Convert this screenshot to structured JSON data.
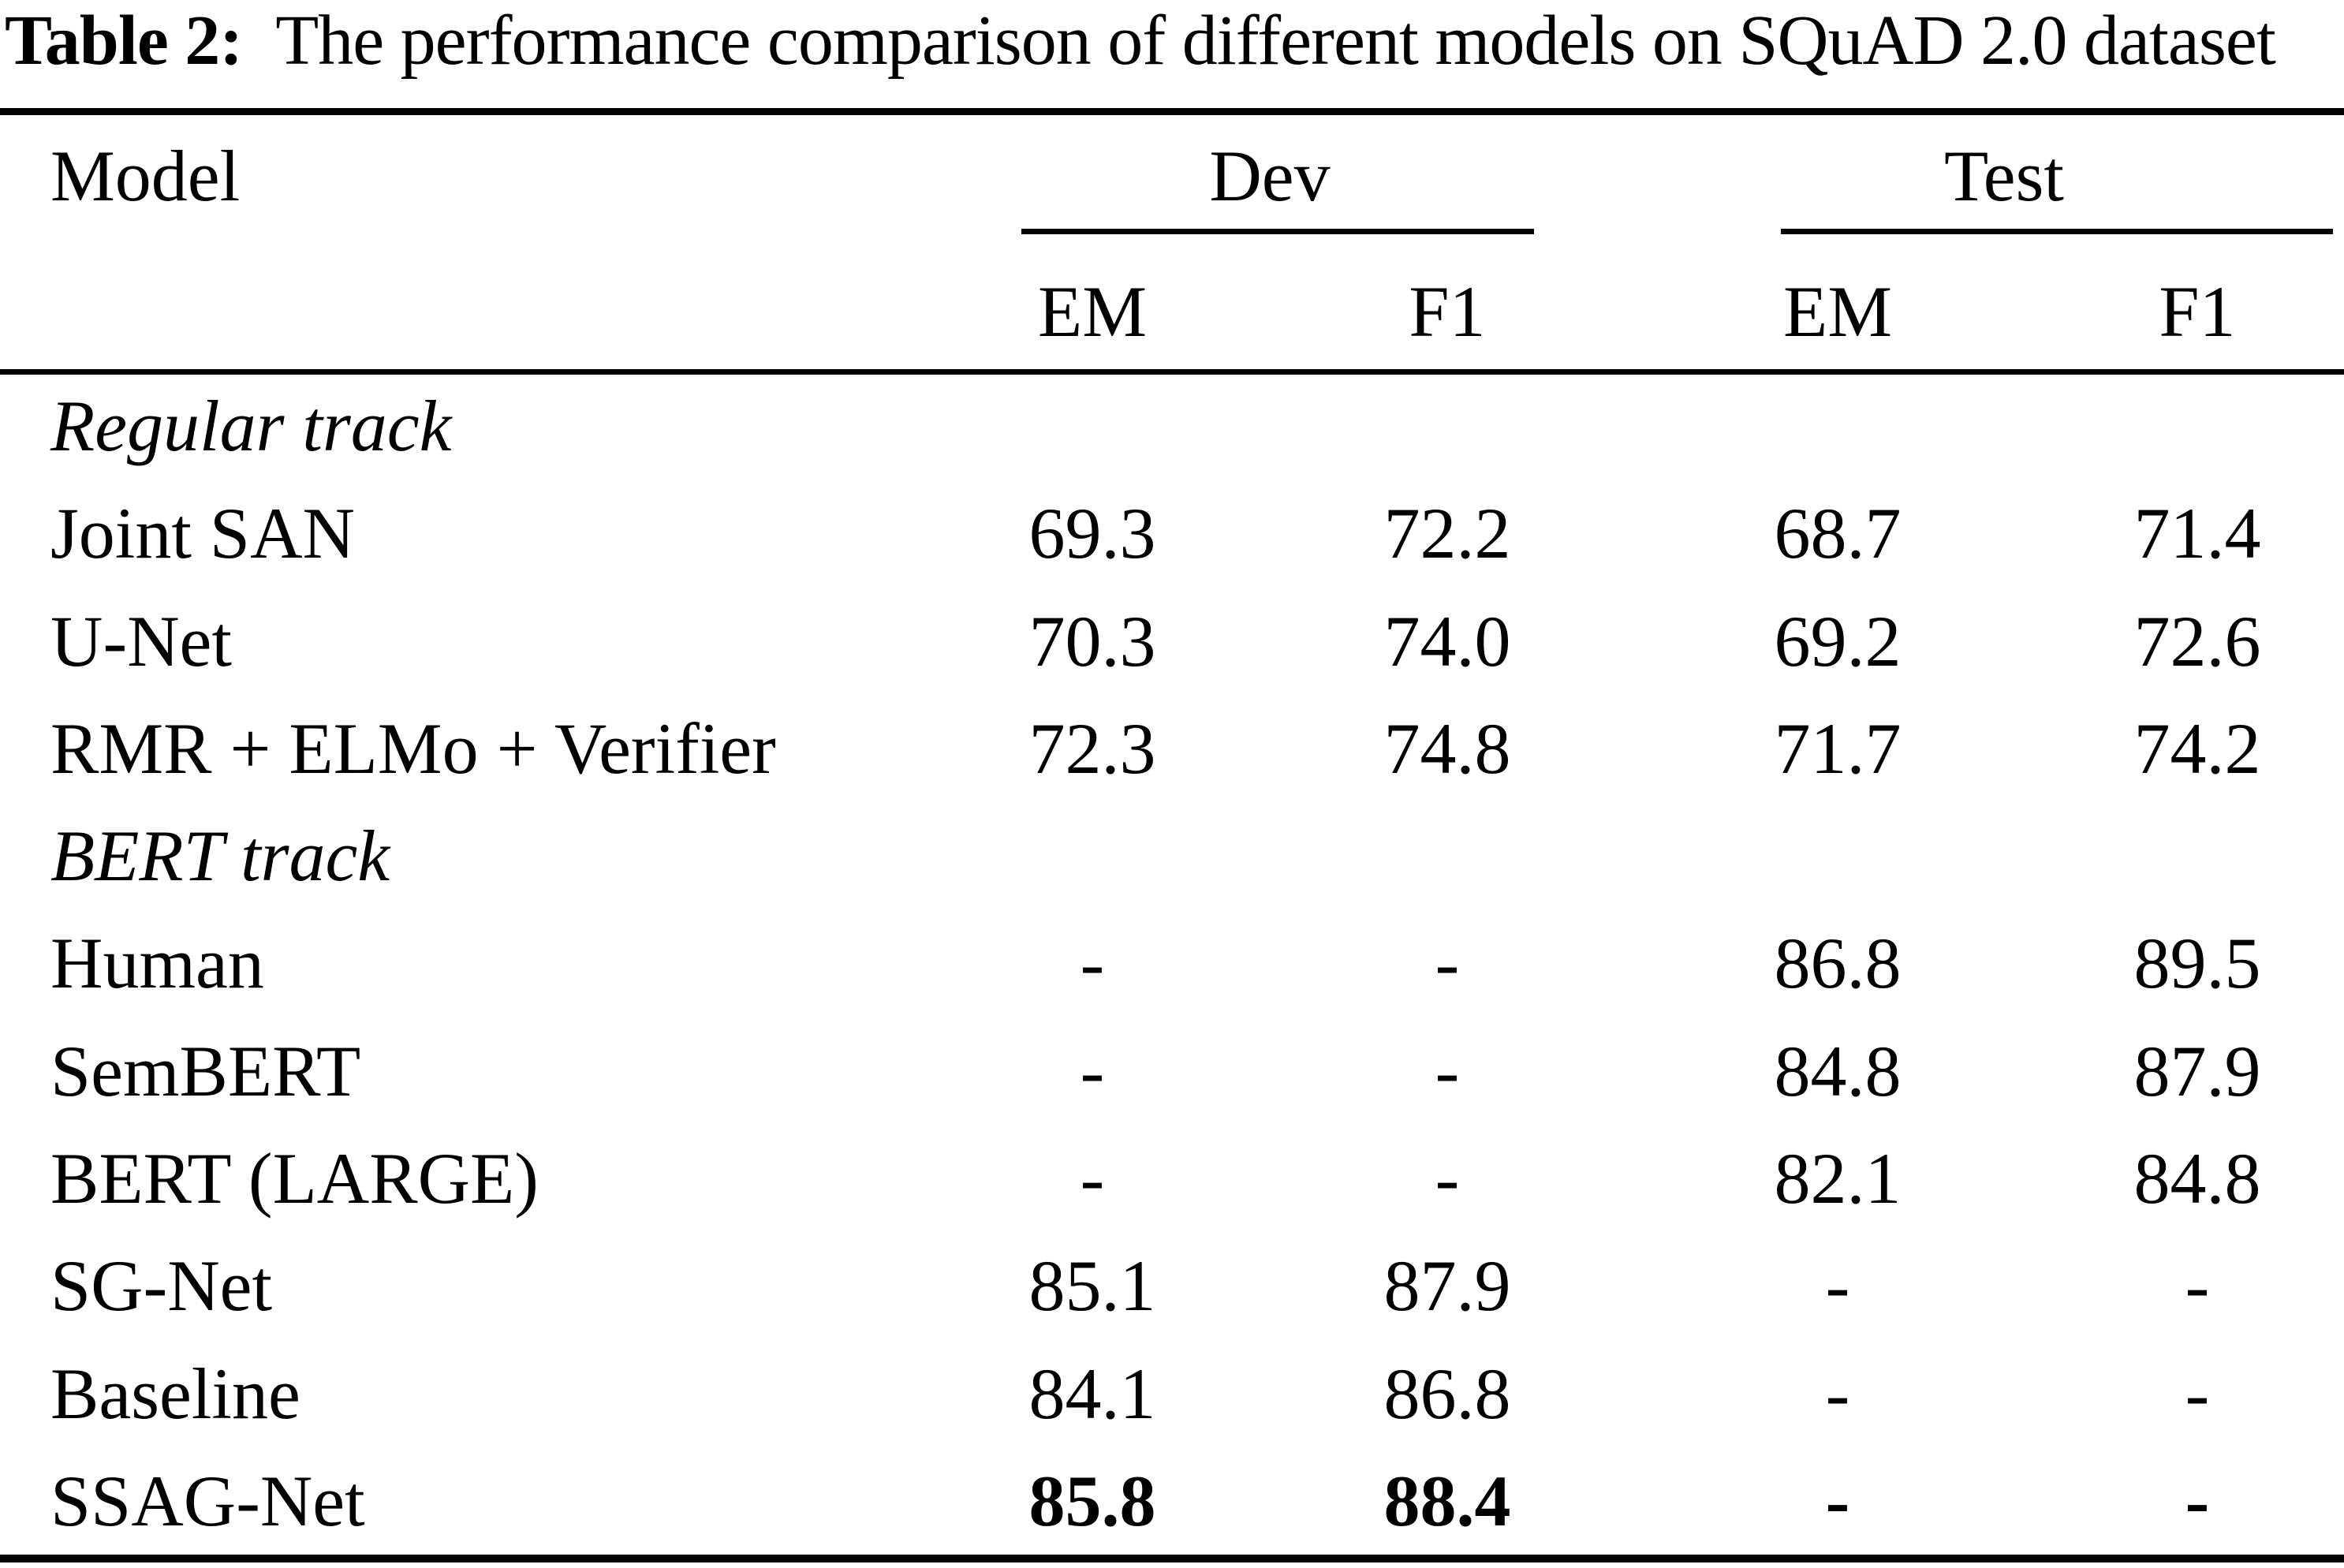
{
  "caption": {
    "label": "Table 2:",
    "text": "The performance comparison of different models on SQuAD 2.0 dataset"
  },
  "table": {
    "header": {
      "model": "Model",
      "dev": "Dev",
      "test": "Test",
      "metrics": [
        "EM",
        "F1",
        "EM",
        "F1"
      ]
    },
    "sections": [
      {
        "title": "Regular track",
        "rows": [
          {
            "model": "Joint SAN",
            "dev_em": "69.3",
            "dev_f1": "72.2",
            "test_em": "68.7",
            "test_f1": "71.4",
            "bold_values": false
          },
          {
            "model": "U-Net",
            "dev_em": "70.3",
            "dev_f1": "74.0",
            "test_em": "69.2",
            "test_f1": "72.6",
            "bold_values": false
          },
          {
            "model": "RMR + ELMo + Verifier",
            "dev_em": "72.3",
            "dev_f1": "74.8",
            "test_em": "71.7",
            "test_f1": "74.2",
            "bold_values": false
          }
        ]
      },
      {
        "title": "BERT track",
        "rows": [
          {
            "model": "Human",
            "dev_em": "-",
            "dev_f1": "-",
            "test_em": "86.8",
            "test_f1": "89.5",
            "bold_values": false
          },
          {
            "model": "SemBERT",
            "dev_em": "-",
            "dev_f1": "-",
            "test_em": "84.8",
            "test_f1": "87.9",
            "bold_values": false
          },
          {
            "model": "BERT (LARGE)",
            "dev_em": "-",
            "dev_f1": "-",
            "test_em": "82.1",
            "test_f1": "84.8",
            "bold_values": false
          },
          {
            "model": "SG-Net",
            "dev_em": "85.1",
            "dev_f1": "87.9",
            "test_em": "-",
            "test_f1": "-",
            "bold_values": false
          },
          {
            "model": "Baseline",
            "dev_em": "84.1",
            "dev_f1": "86.8",
            "test_em": "-",
            "test_f1": "-",
            "bold_values": false
          },
          {
            "model": "SSAG-Net",
            "dev_em": "85.8",
            "dev_f1": "88.4",
            "test_em": "-",
            "test_f1": "-",
            "bold_values": true
          }
        ]
      }
    ]
  },
  "colors": {
    "text": "#000000",
    "background": "#ffffff",
    "rule": "#000000"
  },
  "chart_data": {
    "type": "table",
    "title": "Table 2: The performance comparison of different models on SQuAD 2.0 dataset",
    "column_groups": [
      "Dev",
      "Test"
    ],
    "columns": [
      "Model",
      "Dev EM",
      "Dev F1",
      "Test EM",
      "Test F1"
    ],
    "rows": [
      [
        "Regular track",
        "",
        "",
        "",
        ""
      ],
      [
        "Joint SAN",
        "69.3",
        "72.2",
        "68.7",
        "71.4"
      ],
      [
        "U-Net",
        "70.3",
        "74.0",
        "69.2",
        "72.6"
      ],
      [
        "RMR + ELMo + Verifier",
        "72.3",
        "74.8",
        "71.7",
        "74.2"
      ],
      [
        "BERT track",
        "",
        "",
        "",
        ""
      ],
      [
        "Human",
        "-",
        "-",
        "86.8",
        "89.5"
      ],
      [
        "SemBERT",
        "-",
        "-",
        "84.8",
        "87.9"
      ],
      [
        "BERT (LARGE)",
        "-",
        "-",
        "82.1",
        "84.8"
      ],
      [
        "SG-Net",
        "85.1",
        "87.9",
        "-",
        "-"
      ],
      [
        "Baseline",
        "84.1",
        "86.8",
        "-",
        "-"
      ],
      [
        "SSAG-Net",
        "85.8",
        "88.4",
        "-",
        "-"
      ]
    ],
    "bold_rows": [
      "SSAG-Net"
    ]
  }
}
